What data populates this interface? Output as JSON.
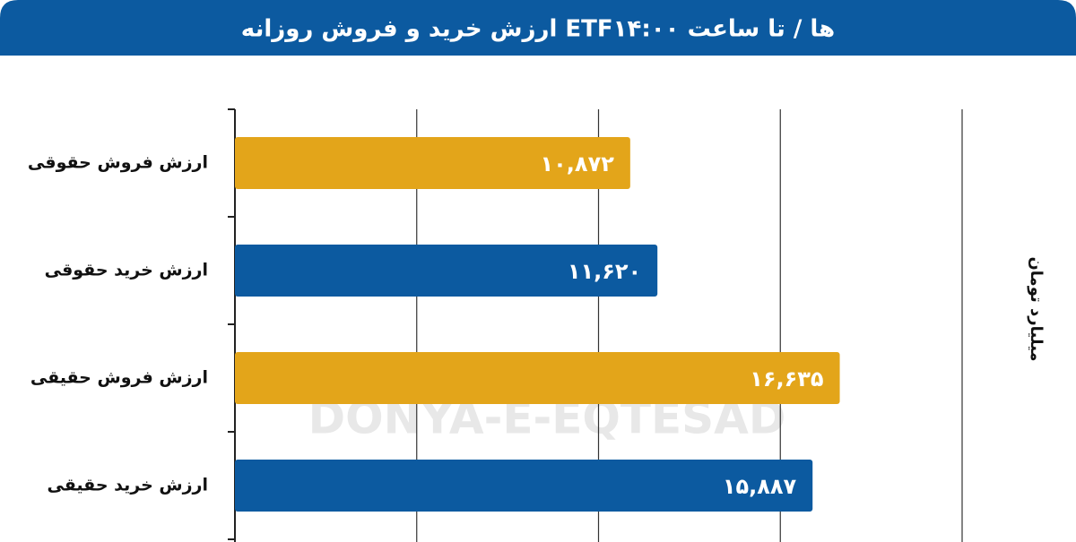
{
  "chart_data": {
    "type": "hbar",
    "title": "ارزش خرید و فروش روزانه ETFها / تا ساعت ۱۴:۰۰",
    "categories": [
      "ارزش فروش حقوقی",
      "ارزش خرید حقوقی",
      "ارزش فروش حقیقی",
      "ارزش خرید حقیقی"
    ],
    "values": [
      10872,
      11620,
      16635,
      15887
    ],
    "value_labels": [
      "۱۰,۸۷۲",
      "۱۱,۶۲۰",
      "۱۶,۶۳۵",
      "۱۵,۸۸۷"
    ],
    "colors": [
      "#e3a51a",
      "#0c5aa0",
      "#e3a51a",
      "#0c5aa0"
    ],
    "xlabel": "میلیارد تومان",
    "watermark": "DONYA-E-EQTESAD",
    "xlim": [
      0,
      20000
    ],
    "xticks": [
      0,
      5000,
      10000,
      15000,
      20000
    ],
    "grid": true
  }
}
